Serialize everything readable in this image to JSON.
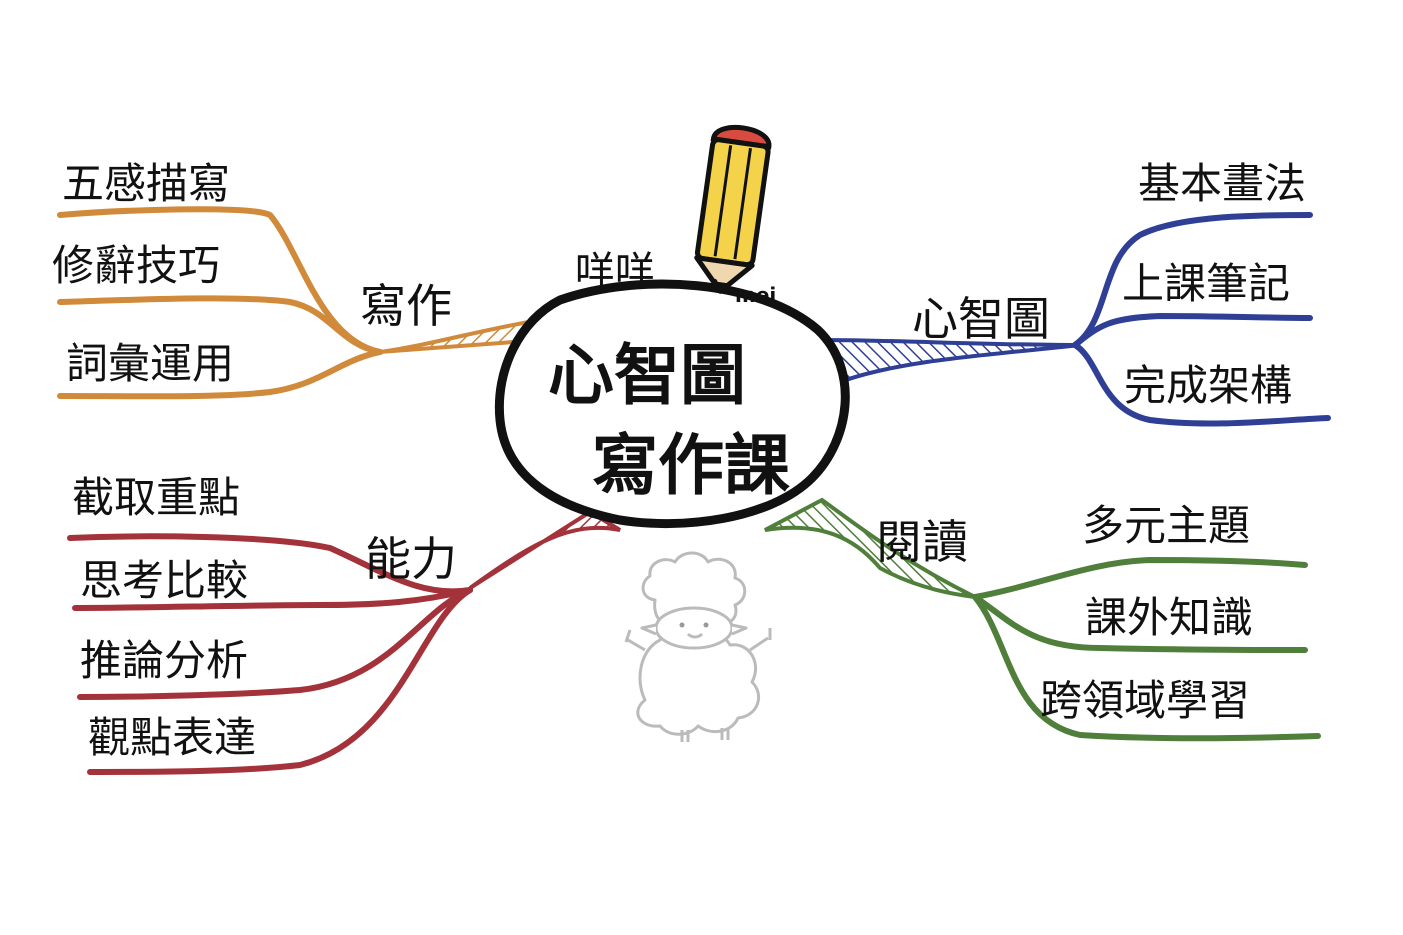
{
  "center": {
    "line1": "心智圖",
    "line2": "寫作課"
  },
  "tagline": "咩咩",
  "signature": "mei",
  "branches": {
    "writing": {
      "label": "寫作",
      "color": "#D08A3A",
      "leaves": [
        "五感描寫",
        "修辭技巧",
        "詞彙運用"
      ]
    },
    "ability": {
      "label": "能力",
      "color": "#A3323A",
      "leaves": [
        "截取重點",
        "思考比較",
        "推論分析",
        "觀點表達"
      ]
    },
    "mindmap": {
      "label": "心智圖",
      "color": "#2F3F96",
      "leaves": [
        "基本畫法",
        "上課筆記",
        "完成架構"
      ]
    },
    "reading": {
      "label": "閱讀",
      "color": "#4F7F3A",
      "leaves": [
        "多元主題",
        "課外知識",
        "跨領域學習"
      ]
    }
  },
  "icons": {
    "pencil": "pencil-icon",
    "sheep": "sheep-mascot-icon"
  }
}
